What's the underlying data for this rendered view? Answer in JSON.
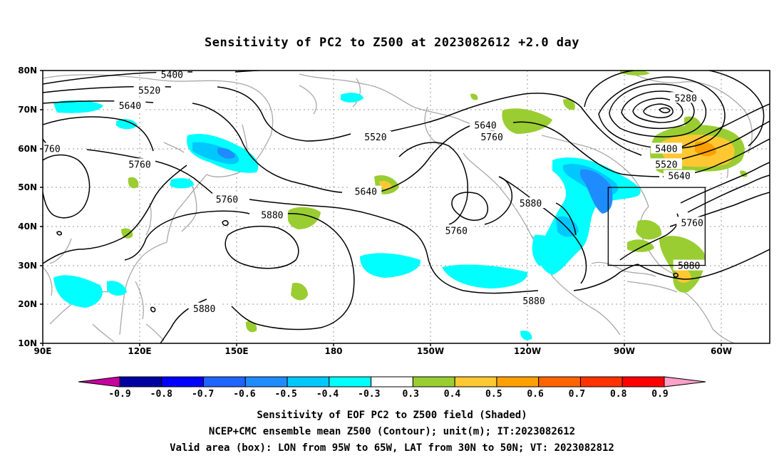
{
  "title": "Sensitivity of PC2 to Z500 at 2023082612 +2.0 day",
  "lat_labels": [
    "80N",
    "70N",
    "60N",
    "50N",
    "40N",
    "30N",
    "20N",
    "10N"
  ],
  "lon_labels": [
    "90E",
    "120E",
    "150E",
    "180",
    "150W",
    "120W",
    "90W",
    "60W"
  ],
  "contour_labels": [
    {
      "text": "5400",
      "lon": 130,
      "lat": 79
    },
    {
      "text": "5520",
      "lon": 123,
      "lat": 75
    },
    {
      "text": "5640",
      "lon": 117,
      "lat": 71
    },
    {
      "text": "5760",
      "lon": 92,
      "lat": 60
    },
    {
      "text": "5760",
      "lon": 120,
      "lat": 56
    },
    {
      "text": "5520",
      "lon": 193,
      "lat": 63
    },
    {
      "text": "5640",
      "lon": 227,
      "lat": 66
    },
    {
      "text": "5760",
      "lon": 229,
      "lat": 63
    },
    {
      "text": "5280",
      "lon": 289,
      "lat": 73
    },
    {
      "text": "5400",
      "lon": 283,
      "lat": 60
    },
    {
      "text": "5520",
      "lon": 283,
      "lat": 56
    },
    {
      "text": "5640",
      "lon": 287,
      "lat": 53
    },
    {
      "text": "5760",
      "lon": 147,
      "lat": 47
    },
    {
      "text": "5880",
      "lon": 161,
      "lat": 43
    },
    {
      "text": "5640",
      "lon": 190,
      "lat": 49
    },
    {
      "text": "5880",
      "lon": 241,
      "lat": 46
    },
    {
      "text": "5760",
      "lon": 218,
      "lat": 39
    },
    {
      "text": "5760",
      "lon": 291,
      "lat": 41
    },
    {
      "text": "5880",
      "lon": 290,
      "lat": 30
    },
    {
      "text": "5880",
      "lon": 242,
      "lat": 21
    },
    {
      "text": "5880",
      "lon": 140,
      "lat": 19
    }
  ],
  "valid_box": {
    "lon_min": 265,
    "lon_max": 295,
    "lat_min": 30,
    "lat_max": 50
  },
  "colorbar": {
    "labels": [
      "-0.9",
      "-0.8",
      "-0.7",
      "-0.6",
      "-0.5",
      "-0.4",
      "-0.3",
      "0.3",
      "0.4",
      "0.5",
      "0.6",
      "0.7",
      "0.8",
      "0.9"
    ],
    "colors": [
      "#0000a0",
      "#0000ff",
      "#1e64ff",
      "#1e8cff",
      "#00c8ff",
      "#00ffff",
      "#ffffff",
      "#9acd32",
      "#ffc832",
      "#ffa000",
      "#ff6400",
      "#ff3200",
      "#ff0000"
    ],
    "low_color": "#c800a0",
    "high_color": "#ffa0c8"
  },
  "captions": [
    "Sensitivity of EOF PC2 to Z500 field (Shaded)",
    "NCEP+CMC ensemble mean Z500 (Contour); unit(m); IT:2023082612",
    "Valid area (box): LON from 95W to 65W, LAT from 30N to 50N; VT: 2023082812"
  ]
}
